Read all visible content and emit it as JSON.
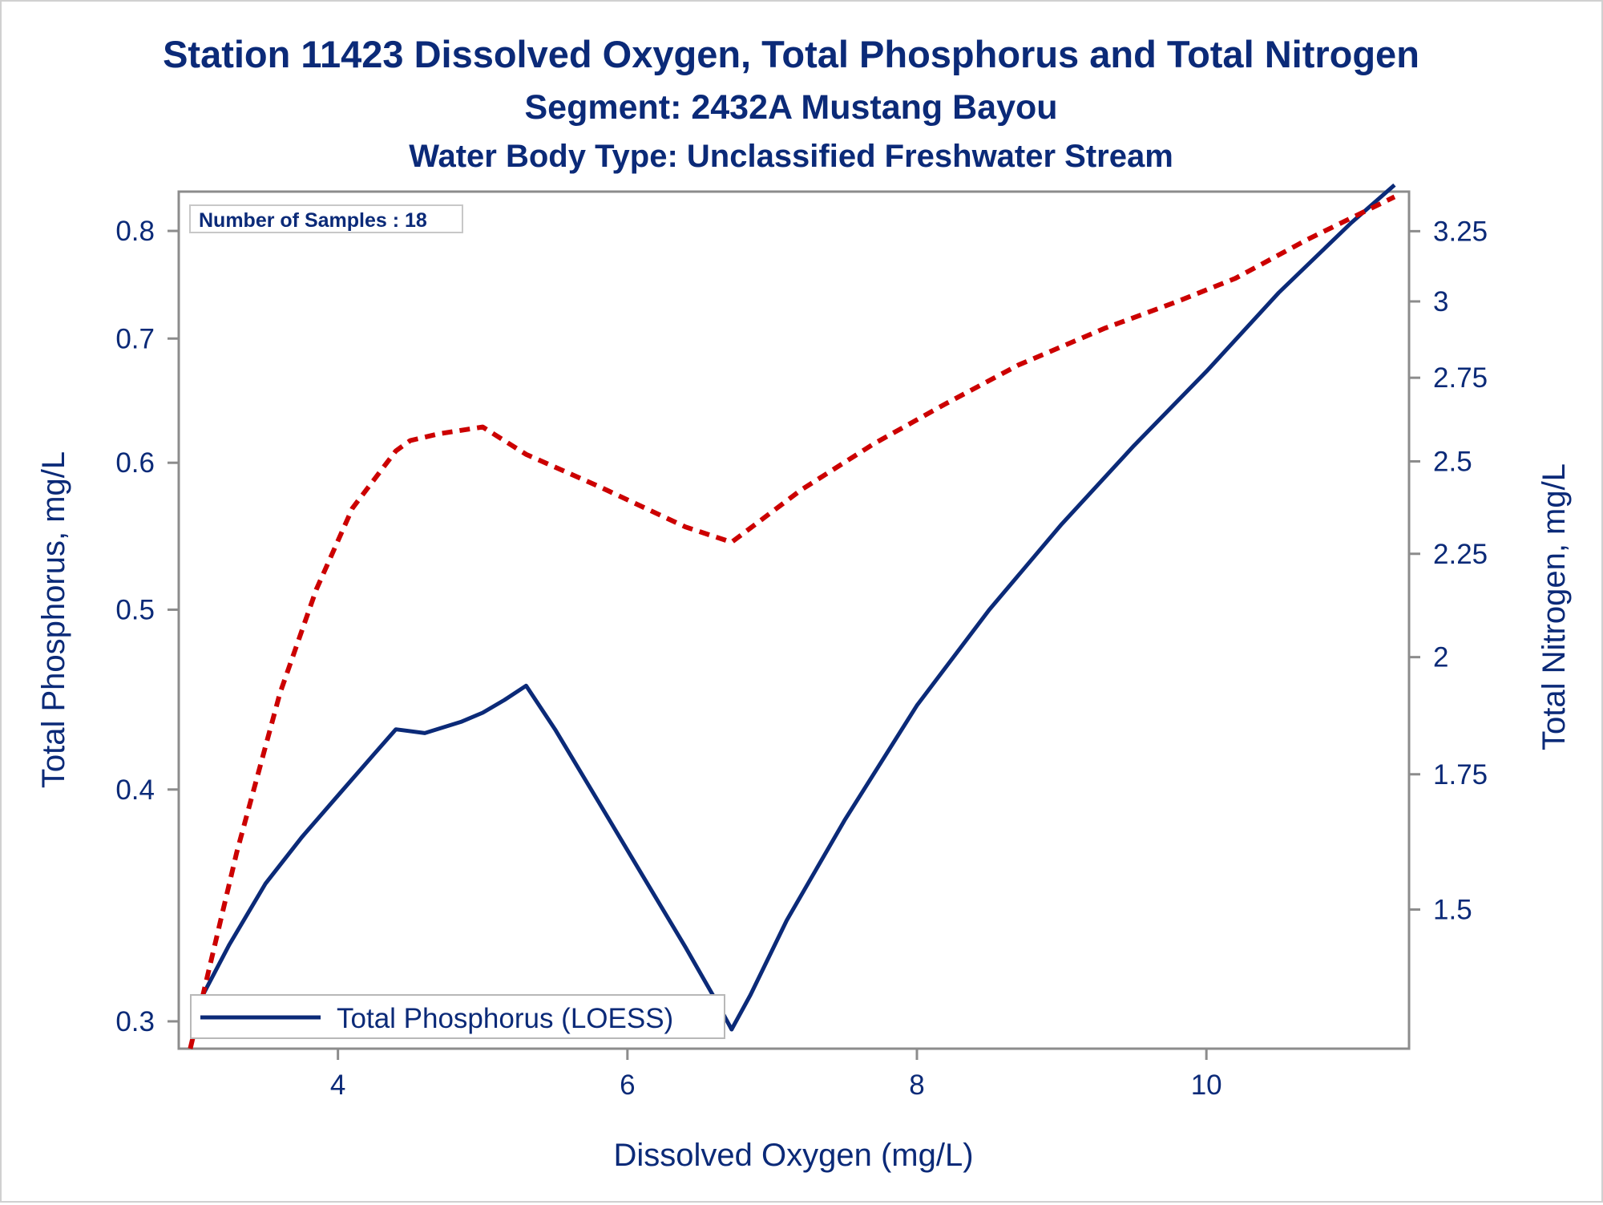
{
  "chart_data": {
    "type": "line",
    "title": "Station 11423  Dissolved Oxygen, Total Phosphorus and Total Nitrogen",
    "subtitle": "Segment: 2432A  Mustang Bayou",
    "subtitle2": "Water Body Type: Unclassified Freshwater Stream",
    "annotation": "Number of Samples : 18",
    "xlabel": "Dissolved Oxygen (mg/L)",
    "ylabel_left": "Total Phosphorus, mg/L",
    "ylabel_right": "Total Nitrogen, mg/L",
    "xlim": [
      2.9,
      11.4
    ],
    "ylim_left": [
      0.29,
      0.84
    ],
    "ylim_right": [
      1.28,
      3.4
    ],
    "yscale": "log",
    "x_ticks": [
      "4",
      "6",
      "8",
      "10"
    ],
    "y_left_ticks": [
      "0.3",
      "0.4",
      "0.5",
      "0.6",
      "0.7",
      "0.8"
    ],
    "y_right_ticks": [
      "1.5",
      "1.75",
      "2",
      "2.25",
      "2.5",
      "2.75",
      "3",
      "3.25"
    ],
    "legend": {
      "placement": "bottom-left",
      "entries": [
        "Total Phosphorus (LOESS)"
      ]
    },
    "grid": false,
    "series": [
      {
        "name": "Total Phosphorus (LOESS)",
        "axis": "left",
        "color": "#0b2a78",
        "style": "solid",
        "x": [
          3.0,
          3.25,
          3.5,
          3.75,
          4.0,
          4.25,
          4.4,
          4.6,
          4.85,
          5.0,
          5.15,
          5.3,
          5.5,
          5.8,
          6.1,
          6.4,
          6.6,
          6.72,
          6.85,
          7.1,
          7.5,
          8.0,
          8.5,
          9.0,
          9.5,
          10.0,
          10.5,
          11.0,
          11.3
        ],
        "y": [
          0.303,
          0.33,
          0.356,
          0.377,
          0.397,
          0.418,
          0.431,
          0.429,
          0.435,
          0.44,
          0.447,
          0.455,
          0.431,
          0.394,
          0.36,
          0.329,
          0.309,
          0.297,
          0.31,
          0.34,
          0.385,
          0.444,
          0.5,
          0.556,
          0.613,
          0.672,
          0.741,
          0.808,
          0.847
        ]
      },
      {
        "name": "Total Nitrogen",
        "axis": "right",
        "color": "#cc0000",
        "style": "dashed",
        "x": [
          2.98,
          3.3,
          3.6,
          3.85,
          4.1,
          4.4,
          4.5,
          4.7,
          5.0,
          5.3,
          5.8,
          6.4,
          6.72,
          7.2,
          7.7,
          8.2,
          8.7,
          9.3,
          9.8,
          10.2,
          10.7,
          11.3
        ],
        "y": [
          1.28,
          1.6,
          1.92,
          2.16,
          2.37,
          2.53,
          2.56,
          2.58,
          2.6,
          2.52,
          2.43,
          2.32,
          2.28,
          2.42,
          2.55,
          2.67,
          2.79,
          2.91,
          3.0,
          3.08,
          3.22,
          3.38
        ]
      }
    ]
  }
}
